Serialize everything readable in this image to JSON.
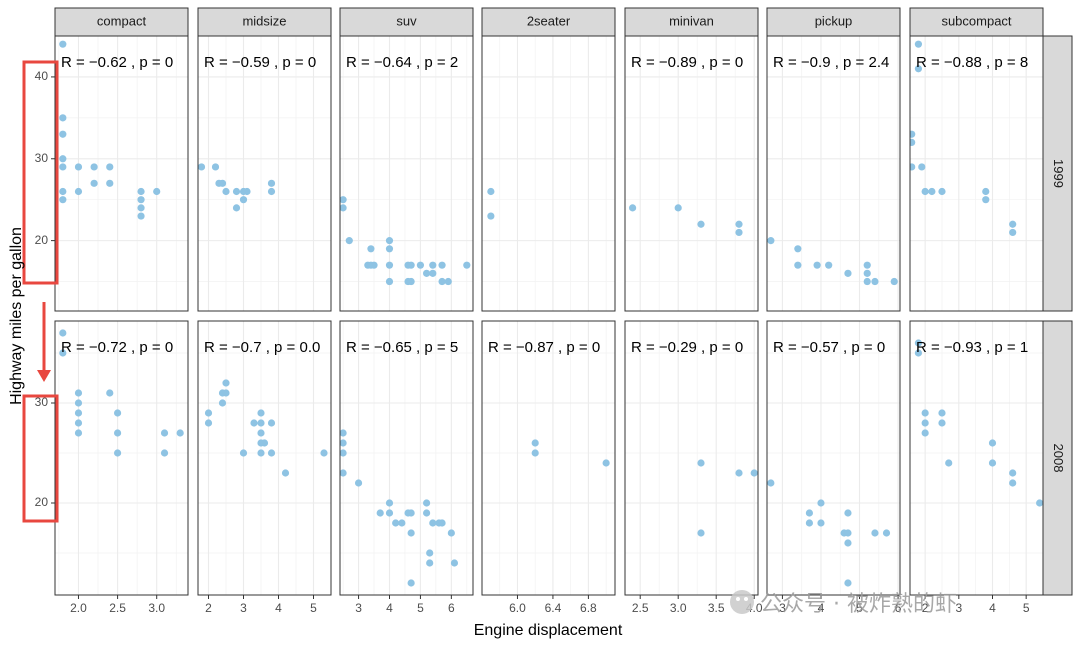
{
  "chart_data": {
    "type": "scatter",
    "xlabel": "Engine displacement",
    "ylabel": "Highway miles per gallon",
    "point_color": "#8ec3e3",
    "grid": true,
    "facet_columns": [
      "compact",
      "midsize",
      "suv",
      "2seater",
      "minivan",
      "pickup",
      "subcompact"
    ],
    "facet_rows": [
      "1999",
      "2008"
    ],
    "y_ticks": {
      "1999": [
        20,
        30,
        40
      ],
      "2008": [
        20,
        30
      ]
    },
    "panels": {
      "compact": {
        "x_range": [
          1.7,
          3.4
        ],
        "x_ticks": [
          2.0,
          2.5,
          3.0
        ],
        "x_tick_labels": [
          "2.0",
          "2.5",
          "3.0"
        ],
        "1999": {
          "annotation": "R = −0.62 , p = 0",
          "points": [
            [
              1.8,
              44
            ],
            [
              1.8,
              35
            ],
            [
              1.8,
              33
            ],
            [
              1.8,
              30
            ],
            [
              1.8,
              29
            ],
            [
              1.8,
              26
            ],
            [
              1.8,
              25
            ],
            [
              2.0,
              29
            ],
            [
              2.0,
              26
            ],
            [
              2.2,
              29
            ],
            [
              2.2,
              27
            ],
            [
              2.4,
              29
            ],
            [
              2.4,
              27
            ],
            [
              2.8,
              26
            ],
            [
              2.8,
              25
            ],
            [
              2.8,
              24
            ],
            [
              2.8,
              23
            ],
            [
              3.0,
              26
            ]
          ]
        },
        "2008": {
          "annotation": "R = −0.72 , p = 0",
          "points": [
            [
              1.8,
              37
            ],
            [
              1.8,
              35
            ],
            [
              2.0,
              31
            ],
            [
              2.0,
              30
            ],
            [
              2.0,
              29
            ],
            [
              2.0,
              28
            ],
            [
              2.0,
              27
            ],
            [
              2.4,
              31
            ],
            [
              2.5,
              29
            ],
            [
              2.5,
              27
            ],
            [
              2.5,
              25
            ],
            [
              3.1,
              27
            ],
            [
              3.1,
              25
            ],
            [
              3.3,
              27
            ]
          ]
        }
      },
      "midsize": {
        "x_range": [
          1.7,
          5.5
        ],
        "x_ticks": [
          2,
          3,
          4,
          5
        ],
        "x_tick_labels": [
          "2",
          "3",
          "4",
          "5"
        ],
        "1999": {
          "annotation": "R = −0.59 , p = 0",
          "points": [
            [
              1.8,
              29
            ],
            [
              2.2,
              29
            ],
            [
              2.3,
              27
            ],
            [
              2.4,
              27
            ],
            [
              2.5,
              26
            ],
            [
              2.8,
              26
            ],
            [
              2.8,
              24
            ],
            [
              3.0,
              26
            ],
            [
              3.0,
              25
            ],
            [
              3.1,
              26
            ],
            [
              3.8,
              27
            ],
            [
              3.8,
              26
            ]
          ]
        },
        "2008": {
          "annotation": "R = −0.7 , p = 0.0",
          "points": [
            [
              2.0,
              29
            ],
            [
              2.0,
              28
            ],
            [
              2.4,
              31
            ],
            [
              2.4,
              30
            ],
            [
              2.5,
              32
            ],
            [
              2.5,
              31
            ],
            [
              3.0,
              25
            ],
            [
              3.3,
              28
            ],
            [
              3.5,
              29
            ],
            [
              3.5,
              28
            ],
            [
              3.5,
              27
            ],
            [
              3.5,
              26
            ],
            [
              3.5,
              25
            ],
            [
              3.6,
              26
            ],
            [
              3.8,
              28
            ],
            [
              3.8,
              25
            ],
            [
              4.2,
              23
            ],
            [
              5.3,
              25
            ]
          ]
        }
      },
      "suv": {
        "x_range": [
          2.4,
          6.7
        ],
        "x_ticks": [
          3,
          4,
          5,
          6
        ],
        "x_tick_labels": [
          "3",
          "4",
          "5",
          "6"
        ],
        "1999": {
          "annotation": "R = −0.64 , p = 2",
          "points": [
            [
              2.5,
              25
            ],
            [
              2.5,
              24
            ],
            [
              2.7,
              20
            ],
            [
              3.3,
              17
            ],
            [
              3.4,
              19
            ],
            [
              3.4,
              17
            ],
            [
              3.5,
              17
            ],
            [
              4.0,
              20
            ],
            [
              4.0,
              19
            ],
            [
              4.0,
              17
            ],
            [
              4.0,
              15
            ],
            [
              4.6,
              17
            ],
            [
              4.6,
              15
            ],
            [
              4.7,
              17
            ],
            [
              4.7,
              15
            ],
            [
              5.0,
              17
            ],
            [
              5.2,
              16
            ],
            [
              5.4,
              17
            ],
            [
              5.4,
              16
            ],
            [
              5.7,
              17
            ],
            [
              5.7,
              15
            ],
            [
              5.9,
              15
            ],
            [
              6.5,
              17
            ]
          ]
        },
        "2008": {
          "annotation": "R = −0.65 , p = 5",
          "points": [
            [
              2.5,
              27
            ],
            [
              2.5,
              26
            ],
            [
              2.5,
              25
            ],
            [
              2.5,
              23
            ],
            [
              3.0,
              22
            ],
            [
              3.7,
              19
            ],
            [
              4.0,
              20
            ],
            [
              4.0,
              19
            ],
            [
              4.2,
              18
            ],
            [
              4.4,
              18
            ],
            [
              4.6,
              19
            ],
            [
              4.7,
              19
            ],
            [
              4.7,
              17
            ],
            [
              4.7,
              12
            ],
            [
              5.2,
              20
            ],
            [
              5.2,
              19
            ],
            [
              5.3,
              15
            ],
            [
              5.3,
              14
            ],
            [
              5.4,
              18
            ],
            [
              5.6,
              18
            ],
            [
              5.7,
              18
            ],
            [
              6.0,
              17
            ],
            [
              6.1,
              14
            ]
          ]
        }
      },
      "2seater": {
        "x_range": [
          5.6,
          7.1
        ],
        "x_ticks": [
          6.0,
          6.4,
          6.8
        ],
        "x_tick_labels": [
          "6.0",
          "6.4",
          "6.8"
        ],
        "1999": {
          "annotation": "",
          "points": [
            [
              5.7,
              26
            ],
            [
              5.7,
              23
            ]
          ]
        },
        "2008": {
          "annotation": "R = −0.87 , p = 0",
          "points": [
            [
              6.2,
              26
            ],
            [
              6.2,
              25
            ],
            [
              7.0,
              24
            ]
          ]
        }
      },
      "minivan": {
        "x_range": [
          2.3,
          4.05
        ],
        "x_ticks": [
          2.5,
          3.0,
          3.5,
          4.0
        ],
        "x_tick_labels": [
          "2.5",
          "3.0",
          "3.5",
          "4.0"
        ],
        "1999": {
          "annotation": "R = −0.89 , p = 0",
          "points": [
            [
              2.4,
              24
            ],
            [
              3.0,
              24
            ],
            [
              3.3,
              22
            ],
            [
              3.8,
              22
            ],
            [
              3.8,
              21
            ]
          ]
        },
        "2008": {
          "annotation": "R = −0.29 , p = 0",
          "points": [
            [
              3.3,
              24
            ],
            [
              3.3,
              17
            ],
            [
              3.8,
              23
            ],
            [
              4.0,
              23
            ]
          ]
        }
      },
      "pickup": {
        "x_range": [
          2.6,
          6.05
        ],
        "x_ticks": [
          3,
          4,
          5,
          6
        ],
        "x_tick_labels": [
          "3",
          "4",
          "5",
          "6"
        ],
        "1999": {
          "annotation": "R = −0.9 , p = 2.4",
          "points": [
            [
              2.7,
              20
            ],
            [
              3.4,
              19
            ],
            [
              3.4,
              17
            ],
            [
              3.9,
              17
            ],
            [
              4.2,
              17
            ],
            [
              4.7,
              16
            ],
            [
              5.2,
              17
            ],
            [
              5.2,
              16
            ],
            [
              5.2,
              15
            ],
            [
              5.4,
              15
            ],
            [
              5.9,
              15
            ]
          ]
        },
        "2008": {
          "annotation": "R = −0.57 , p = 0",
          "points": [
            [
              2.7,
              22
            ],
            [
              3.7,
              19
            ],
            [
              3.7,
              18
            ],
            [
              4.0,
              20
            ],
            [
              4.0,
              18
            ],
            [
              4.6,
              17
            ],
            [
              4.7,
              19
            ],
            [
              4.7,
              17
            ],
            [
              4.7,
              16
            ],
            [
              4.7,
              12
            ],
            [
              5.4,
              17
            ],
            [
              5.7,
              17
            ]
          ]
        }
      },
      "subcompact": {
        "x_range": [
          1.55,
          5.5
        ],
        "x_ticks": [
          2,
          3,
          4,
          5
        ],
        "x_tick_labels": [
          "2",
          "3",
          "4",
          "5"
        ],
        "1999": {
          "annotation": "R = −0.88 , p = 8",
          "points": [
            [
              1.6,
              33
            ],
            [
              1.6,
              32
            ],
            [
              1.6,
              29
            ],
            [
              1.8,
              44
            ],
            [
              1.8,
              41
            ],
            [
              1.9,
              29
            ],
            [
              2.0,
              26
            ],
            [
              2.2,
              26
            ],
            [
              2.5,
              26
            ],
            [
              3.8,
              26
            ],
            [
              3.8,
              25
            ],
            [
              4.6,
              22
            ],
            [
              4.6,
              21
            ]
          ]
        },
        "2008": {
          "annotation": "R = −0.93 , p = 1",
          "points": [
            [
              1.8,
              36
            ],
            [
              1.8,
              35
            ],
            [
              2.0,
              29
            ],
            [
              2.0,
              28
            ],
            [
              2.0,
              27
            ],
            [
              2.5,
              29
            ],
            [
              2.5,
              28
            ],
            [
              2.7,
              24
            ],
            [
              4.0,
              26
            ],
            [
              4.0,
              24
            ],
            [
              4.6,
              23
            ],
            [
              4.6,
              22
            ],
            [
              5.4,
              20
            ]
          ]
        }
      }
    }
  },
  "watermark": {
    "text": "公众号 · 被炸熟的虾"
  }
}
